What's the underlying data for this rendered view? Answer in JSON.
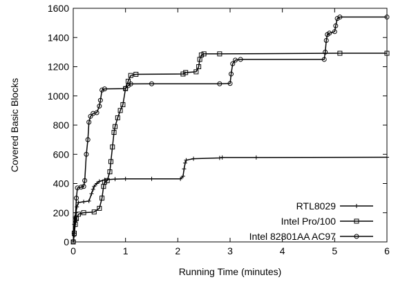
{
  "chart_data": {
    "type": "line",
    "title": "",
    "xlabel": "Running Time (minutes)",
    "ylabel": "Covered Basic Blocks",
    "xlim": [
      0,
      6
    ],
    "ylim": [
      0,
      1600
    ],
    "xticks": [
      0,
      1,
      2,
      3,
      4,
      5,
      6
    ],
    "yticks": [
      0,
      200,
      400,
      600,
      800,
      1000,
      1200,
      1400,
      1600
    ],
    "grid": false,
    "legend_position": "bottom-right",
    "series": [
      {
        "name": "RTL8029",
        "marker": "plus",
        "color": "#000000",
        "points": [
          [
            0,
            0
          ],
          [
            0.01,
            60
          ],
          [
            0.02,
            120
          ],
          [
            0.03,
            170
          ],
          [
            0.05,
            200
          ],
          [
            0.07,
            240
          ],
          [
            0.1,
            270
          ],
          [
            0.2,
            275
          ],
          [
            0.3,
            280
          ],
          [
            0.35,
            330
          ],
          [
            0.38,
            360
          ],
          [
            0.4,
            380
          ],
          [
            0.45,
            400
          ],
          [
            0.5,
            415
          ],
          [
            0.6,
            425
          ],
          [
            0.8,
            430
          ],
          [
            1.0,
            432
          ],
          [
            1.5,
            432
          ],
          [
            2.05,
            432
          ],
          [
            2.1,
            450
          ],
          [
            2.12,
            500
          ],
          [
            2.14,
            540
          ],
          [
            2.16,
            560
          ],
          [
            2.3,
            570
          ],
          [
            2.8,
            575
          ],
          [
            2.85,
            578
          ],
          [
            3.5,
            578
          ],
          [
            6.0,
            580
          ]
        ]
      },
      {
        "name": "Intel Pro/100",
        "marker": "square",
        "color": "#000000",
        "points": [
          [
            0,
            0
          ],
          [
            0.02,
            60
          ],
          [
            0.04,
            120
          ],
          [
            0.06,
            160
          ],
          [
            0.1,
            190
          ],
          [
            0.2,
            200
          ],
          [
            0.4,
            205
          ],
          [
            0.5,
            230
          ],
          [
            0.55,
            300
          ],
          [
            0.58,
            380
          ],
          [
            0.6,
            410
          ],
          [
            0.65,
            420
          ],
          [
            0.7,
            480
          ],
          [
            0.72,
            550
          ],
          [
            0.75,
            650
          ],
          [
            0.78,
            750
          ],
          [
            0.8,
            790
          ],
          [
            0.85,
            850
          ],
          [
            0.9,
            900
          ],
          [
            0.95,
            940
          ],
          [
            1.0,
            1050
          ],
          [
            1.05,
            1100
          ],
          [
            1.1,
            1140
          ],
          [
            1.2,
            1148
          ],
          [
            2.1,
            1150
          ],
          [
            2.15,
            1160
          ],
          [
            2.35,
            1165
          ],
          [
            2.4,
            1200
          ],
          [
            2.42,
            1250
          ],
          [
            2.45,
            1280
          ],
          [
            2.5,
            1288
          ],
          [
            2.8,
            1288
          ],
          [
            5.1,
            1292
          ],
          [
            6.0,
            1292
          ]
        ]
      },
      {
        "name": "Intel 82801AA AC97",
        "marker": "circle",
        "color": "#000000",
        "points": [
          [
            0,
            0
          ],
          [
            0.02,
            50
          ],
          [
            0.04,
            150
          ],
          [
            0.06,
            300
          ],
          [
            0.08,
            370
          ],
          [
            0.15,
            375
          ],
          [
            0.2,
            380
          ],
          [
            0.22,
            420
          ],
          [
            0.25,
            600
          ],
          [
            0.28,
            700
          ],
          [
            0.3,
            820
          ],
          [
            0.33,
            860
          ],
          [
            0.38,
            880
          ],
          [
            0.45,
            885
          ],
          [
            0.5,
            930
          ],
          [
            0.52,
            970
          ],
          [
            0.55,
            1040
          ],
          [
            0.6,
            1048
          ],
          [
            1.0,
            1050
          ],
          [
            1.05,
            1070
          ],
          [
            1.1,
            1082
          ],
          [
            1.5,
            1083
          ],
          [
            2.8,
            1083
          ],
          [
            3.0,
            1085
          ],
          [
            3.02,
            1150
          ],
          [
            3.05,
            1220
          ],
          [
            3.1,
            1245
          ],
          [
            3.2,
            1250
          ],
          [
            4.8,
            1250
          ],
          [
            4.82,
            1300
          ],
          [
            4.84,
            1380
          ],
          [
            4.86,
            1420
          ],
          [
            4.9,
            1430
          ],
          [
            5.0,
            1440
          ],
          [
            5.02,
            1480
          ],
          [
            5.05,
            1530
          ],
          [
            5.1,
            1540
          ],
          [
            6.0,
            1540
          ]
        ]
      }
    ]
  }
}
